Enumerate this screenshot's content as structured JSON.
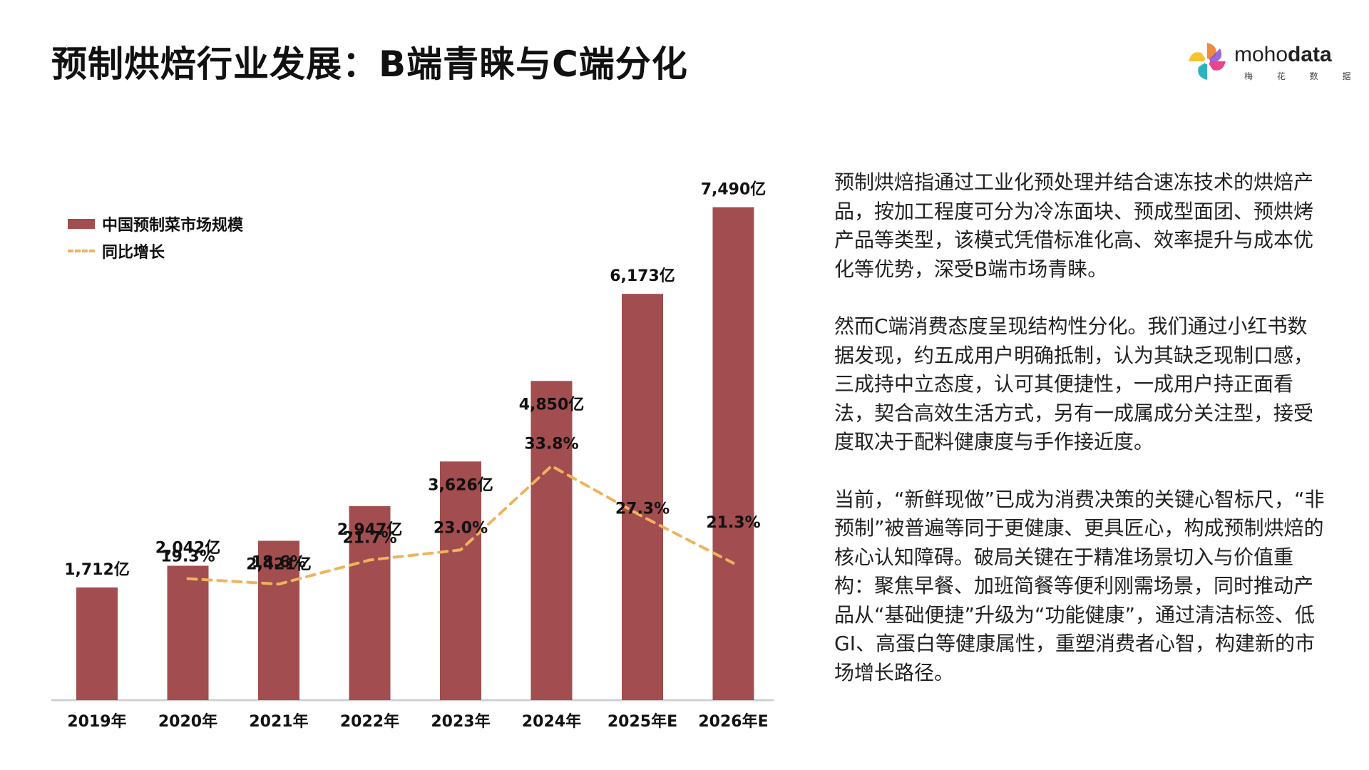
{
  "page": {
    "title": "预制烘焙行业发展：B端青睐与C端分化"
  },
  "logo": {
    "word_thin": "moho",
    "word_bold": "data",
    "subtitle": "梅 花 数 据"
  },
  "legend": {
    "bar_label": "中国预制菜市场规模",
    "line_label": "同比增长"
  },
  "chart_data": {
    "type": "bar",
    "categories": [
      "2019年",
      "2020年",
      "2021年",
      "2022年",
      "2023年",
      "2024年",
      "2025年E",
      "2026年E"
    ],
    "series": [
      {
        "name": "中国预制菜市场规模",
        "type": "bar",
        "values": [
          1712,
          2042,
          2421,
          2947,
          3626,
          4850,
          6173,
          7490
        ],
        "labels": [
          "1,712亿",
          "2,042亿",
          "2,421亿",
          "2,947亿",
          "3,626亿",
          "4,850亿",
          "6,173亿",
          "7,490亿"
        ],
        "color": "#a24d4f"
      },
      {
        "name": "同比增长",
        "type": "line",
        "style": "dashed",
        "values": [
          null,
          19.3,
          18.6,
          21.7,
          23.0,
          33.8,
          27.3,
          21.3
        ],
        "labels": [
          "",
          "19.3%",
          "18.6%",
          "21.7%",
          "23.0%",
          "33.8%",
          "27.3%",
          "21.3%"
        ],
        "color": "#efb35e"
      }
    ],
    "ylim": [
      0,
      7800
    ],
    "growth_ylim": [
      0,
      100
    ],
    "grid": false,
    "legend_position": "top-left",
    "axis_line_color": "#d0d0d0"
  },
  "paragraphs": [
    "预制烘焙指通过工业化预处理并结合速冻技术的烘焙产品，按加工程度可分为冷冻面块、预成型面团、预烘烤产品等类型，该模式凭借标准化高、效率提升与成本优化等优势，深受B端市场青睐。",
    "然而C端消费态度呈现结构性分化。我们通过小红书数据发现，约五成用户明确抵制，认为其缺乏现制口感，三成持中立态度，认可其便捷性，一成用户持正面看法，契合高效生活方式，另有一成属成分关注型，接受度取决于配料健康度与手作接近度。",
    "当前，“新鲜现做”已成为消费决策的关键心智标尺，“非预制”被普遍等同于更健康、更具匠心，构成预制烘焙的核心认知障碍。破局关键在于精准场景切入与价值重构：聚焦早餐、加班简餐等便利刚需场景，同时推动产品从“基础便捷”升级为“功能健康”，通过清洁标签、低GI、高蛋白等健康属性，重塑消费者心智，构建新的市场增长路径。"
  ]
}
